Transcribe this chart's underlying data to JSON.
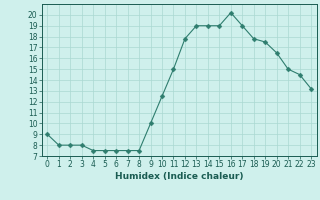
{
  "x": [
    0,
    1,
    2,
    3,
    4,
    5,
    6,
    7,
    8,
    9,
    10,
    11,
    12,
    13,
    14,
    15,
    16,
    17,
    18,
    19,
    20,
    21,
    22,
    23
  ],
  "y": [
    9,
    8,
    8,
    8,
    7.5,
    7.5,
    7.5,
    7.5,
    7.5,
    10,
    12.5,
    15,
    17.8,
    19,
    19,
    19,
    20.2,
    19,
    17.8,
    17.5,
    16.5,
    15,
    14.5,
    13.2
  ],
  "line_color": "#2e7d6e",
  "marker": "D",
  "marker_size": 2.5,
  "bg_color": "#cff0ec",
  "grid_color": "#aad8d2",
  "xlabel": "Humidex (Indice chaleur)",
  "xlim": [
    -0.5,
    23.5
  ],
  "ylim": [
    7,
    21
  ],
  "yticks": [
    7,
    8,
    9,
    10,
    11,
    12,
    13,
    14,
    15,
    16,
    17,
    18,
    19,
    20
  ],
  "xticks": [
    0,
    1,
    2,
    3,
    4,
    5,
    6,
    7,
    8,
    9,
    10,
    11,
    12,
    13,
    14,
    15,
    16,
    17,
    18,
    19,
    20,
    21,
    22,
    23
  ],
  "tick_fontsize": 5.5,
  "label_fontsize": 6.5,
  "axis_color": "#1a5c52",
  "spine_color": "#1a5c52"
}
